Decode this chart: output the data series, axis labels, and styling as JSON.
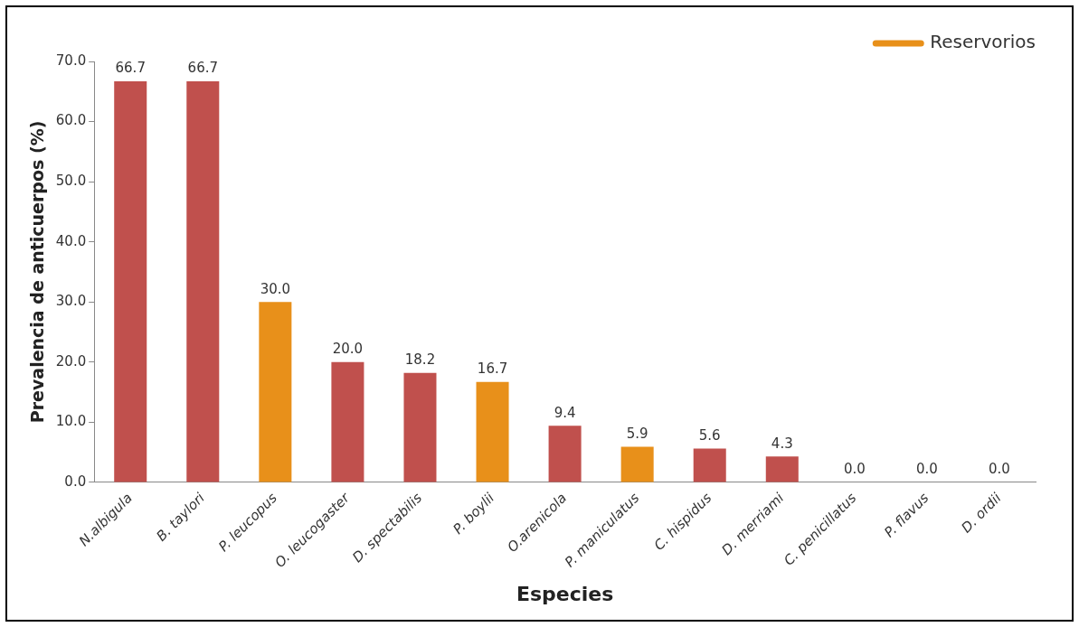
{
  "chart_data": {
    "type": "bar",
    "xlabel": "Especies",
    "ylabel": "Prevalencia de anticuerpos (%)",
    "categories": [
      "N.albigula",
      "B. taylori",
      "P. leucopus",
      "O. leucogaster",
      "D. spectabilis",
      "P. boylii",
      "O.arenicola",
      "P. maniculatus",
      "C. hispidus",
      "D. merriami",
      "C. penicillatus",
      "P. flavus",
      "D. ordii"
    ],
    "stacked": true,
    "series": [
      {
        "color": "#c0504d",
        "values": [
          66.7,
          66.7,
          null,
          20.0,
          18.2,
          null,
          9.4,
          null,
          5.6,
          4.3,
          0.0,
          0.0,
          0.0
        ],
        "value_labels": [
          "66.7",
          "66.7",
          null,
          "20.0",
          "18.2",
          null,
          "9.4",
          null,
          "5.6",
          "4.3",
          "0.0",
          "0.0",
          "0.0"
        ]
      },
      {
        "name": "Reservorios",
        "color": "#e8901a",
        "values": [
          null,
          null,
          30.0,
          null,
          null,
          16.7,
          null,
          5.9,
          null,
          null,
          null,
          null,
          null
        ],
        "value_labels": [
          null,
          null,
          "30.0",
          null,
          null,
          "16.7",
          null,
          "5.9",
          null,
          null,
          null,
          null,
          null
        ]
      }
    ],
    "ylim": [
      0,
      70
    ],
    "yticks": [
      {
        "value": 0,
        "label": "0.0"
      },
      {
        "value": 10,
        "label": "10.0"
      },
      {
        "value": 20,
        "label": "20.0"
      },
      {
        "value": 30,
        "label": "30.0"
      },
      {
        "value": 40,
        "label": "40.0"
      },
      {
        "value": 50,
        "label": "50.0"
      },
      {
        "value": 60,
        "label": "60.0"
      },
      {
        "value": 70,
        "label": "70.0"
      }
    ],
    "grid": false,
    "legend": "top right"
  }
}
